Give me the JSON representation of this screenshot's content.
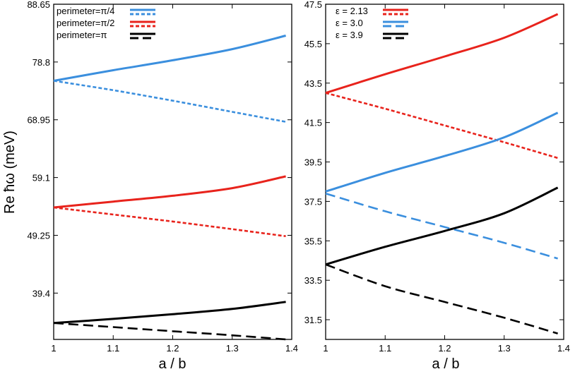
{
  "chart_data": [
    {
      "type": "line",
      "xlabel": "a / b",
      "ylabel": "Re ħω (meV)",
      "xlim": [
        1.0,
        1.4
      ],
      "ylim": [
        31.5,
        88.65
      ],
      "xticks": [
        "1",
        "1.1",
        "1.2",
        "1.3",
        "1.4"
      ],
      "xtick_values": [
        1.0,
        1.1,
        1.2,
        1.3,
        1.4
      ],
      "yticks": [
        "39.4",
        "49.25",
        "59.1",
        "68.95",
        "78.8",
        "88.65"
      ],
      "ytick_values": [
        39.4,
        49.25,
        59.1,
        68.95,
        78.8,
        88.65
      ],
      "legend_position": "top-left",
      "series": [
        {
          "name": "perimeter=π/4",
          "style": "solid",
          "color": "#3b8fde",
          "x": [
            1.0,
            1.1,
            1.2,
            1.3,
            1.39
          ],
          "y": [
            75.6,
            77.4,
            79.1,
            81.0,
            83.3
          ]
        },
        {
          "name": "perimeter=π/4",
          "style": "dotted",
          "color": "#3b8fde",
          "x": [
            1.0,
            1.1,
            1.2,
            1.3,
            1.39
          ],
          "y": [
            75.6,
            74.0,
            72.2,
            70.3,
            68.6
          ]
        },
        {
          "name": "perimeter=π/2",
          "style": "solid",
          "color": "#e8231c",
          "x": [
            1.0,
            1.1,
            1.2,
            1.3,
            1.39
          ],
          "y": [
            54.0,
            55.0,
            56.0,
            57.3,
            59.3
          ]
        },
        {
          "name": "perimeter=π/2",
          "style": "dotted",
          "color": "#e8231c",
          "x": [
            1.0,
            1.1,
            1.2,
            1.3,
            1.39
          ],
          "y": [
            54.0,
            52.8,
            51.6,
            50.3,
            49.1
          ]
        },
        {
          "name": "perimeter=π",
          "style": "solid",
          "color": "#000000",
          "x": [
            1.0,
            1.1,
            1.2,
            1.3,
            1.39
          ],
          "y": [
            34.3,
            35.0,
            35.8,
            36.7,
            37.9
          ]
        },
        {
          "name": "perimeter=π",
          "style": "dashed",
          "color": "#000000",
          "x": [
            1.0,
            1.1,
            1.2,
            1.3,
            1.39
          ],
          "y": [
            34.3,
            33.6,
            32.9,
            32.2,
            31.5
          ]
        }
      ],
      "legend": [
        {
          "label": "perimeter=π/4",
          "color": "#3b8fde",
          "alt_style": "dotted"
        },
        {
          "label": "perimeter=π/2",
          "color": "#e8231c",
          "alt_style": "dotted"
        },
        {
          "label": "perimeter=π",
          "color": "#000000",
          "alt_style": "dashed"
        }
      ]
    },
    {
      "type": "line",
      "xlabel": "a / b",
      "ylabel": "",
      "xlim": [
        1.0,
        1.4
      ],
      "ylim": [
        30.5,
        47.5
      ],
      "xticks": [
        "1",
        "1.1",
        "1.2",
        "1.3",
        "1.4"
      ],
      "xtick_values": [
        1.0,
        1.1,
        1.2,
        1.3,
        1.4
      ],
      "yticks": [
        "31.5",
        "33.5",
        "35.5",
        "37.5",
        "39.5",
        "41.5",
        "43.5",
        "45.5",
        "47.5"
      ],
      "ytick_values": [
        31.5,
        33.5,
        35.5,
        37.5,
        39.5,
        41.5,
        43.5,
        45.5,
        47.5
      ],
      "legend_position": "top-left",
      "series": [
        {
          "name": "ε = 2.13",
          "style": "solid",
          "color": "#e8231c",
          "x": [
            1.0,
            1.1,
            1.2,
            1.3,
            1.39
          ],
          "y": [
            43.0,
            43.95,
            44.85,
            45.8,
            47.0
          ]
        },
        {
          "name": "ε = 2.13",
          "style": "dotted",
          "color": "#e8231c",
          "x": [
            1.0,
            1.1,
            1.2,
            1.3,
            1.39
          ],
          "y": [
            43.0,
            42.2,
            41.35,
            40.5,
            39.7
          ]
        },
        {
          "name": "ε = 3.0",
          "style": "solid",
          "color": "#3b8fde",
          "x": [
            1.0,
            1.1,
            1.2,
            1.3,
            1.39
          ],
          "y": [
            38.0,
            38.95,
            39.8,
            40.75,
            42.0
          ]
        },
        {
          "name": "ε = 3.0",
          "style": "dashed",
          "color": "#3b8fde",
          "x": [
            1.0,
            1.1,
            1.2,
            1.3,
            1.39
          ],
          "y": [
            37.9,
            37.0,
            36.2,
            35.4,
            34.6
          ]
        },
        {
          "name": "ε = 3.9",
          "style": "solid",
          "color": "#000000",
          "x": [
            1.0,
            1.1,
            1.2,
            1.3,
            1.39
          ],
          "y": [
            34.3,
            35.2,
            36.0,
            36.9,
            38.2
          ]
        },
        {
          "name": "ε = 3.9",
          "style": "dashed",
          "color": "#000000",
          "x": [
            1.0,
            1.1,
            1.2,
            1.3,
            1.39
          ],
          "y": [
            34.3,
            33.2,
            32.4,
            31.6,
            30.8
          ]
        }
      ],
      "legend": [
        {
          "label": "ε = 2.13",
          "color": "#e8231c",
          "alt_style": "dotted"
        },
        {
          "label": "ε = 3.0",
          "color": "#3b8fde",
          "alt_style": "dashed"
        },
        {
          "label": "ε = 3.9",
          "color": "#000000",
          "alt_style": "dashed"
        }
      ]
    }
  ]
}
